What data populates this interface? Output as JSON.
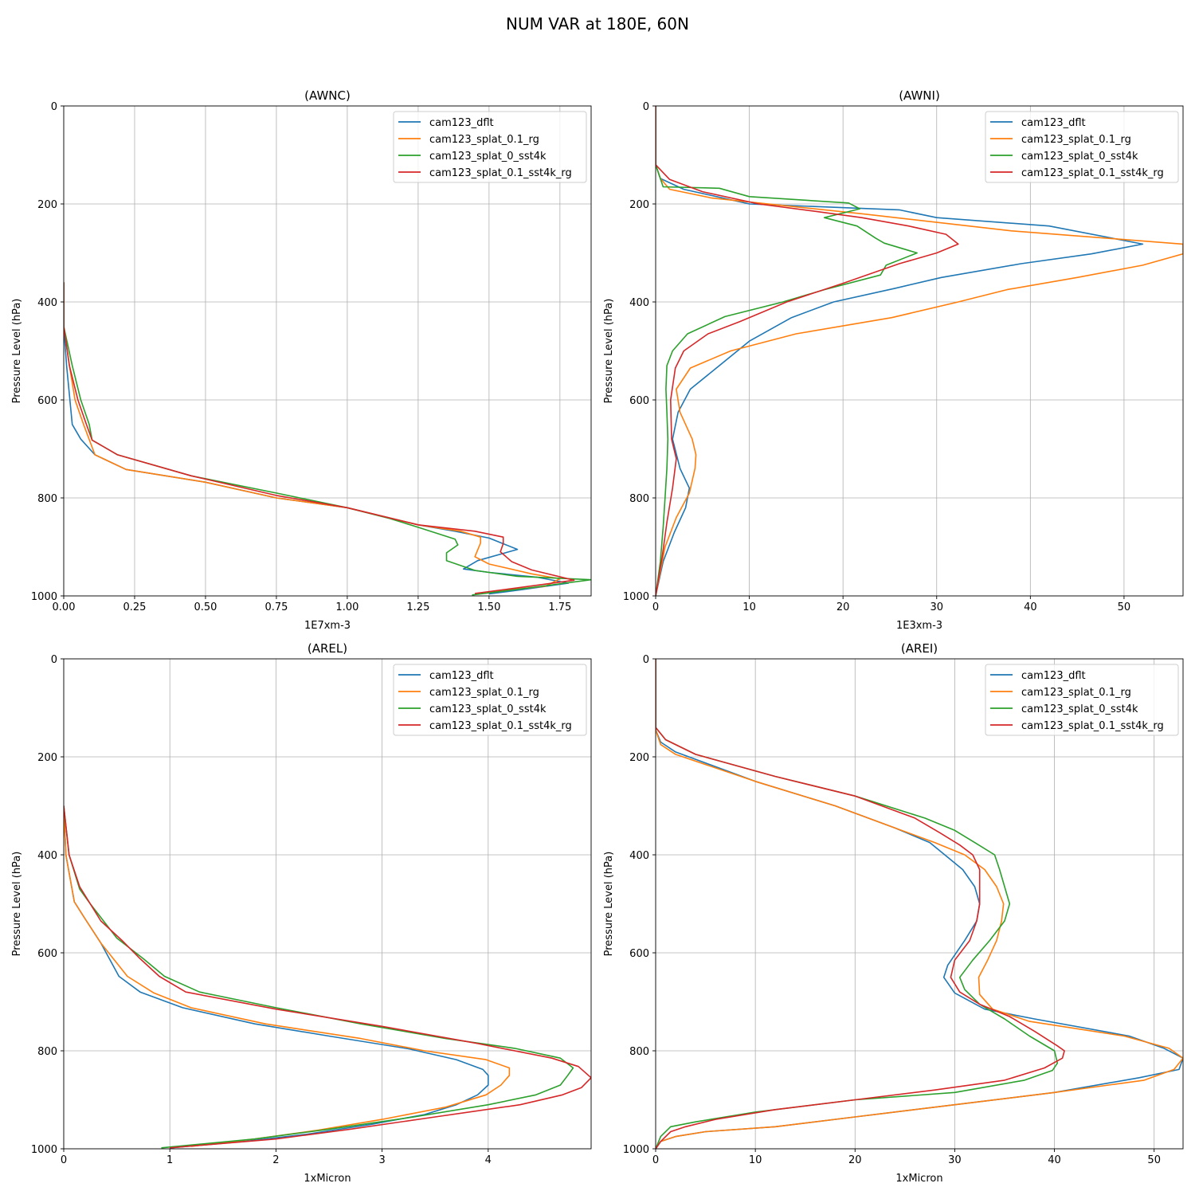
{
  "figure_title": "NUM VAR at 180E, 60N",
  "colors": {
    "cam123_dflt": "#1f77b4",
    "cam123_splat_0.1_rg": "#ff7f0e",
    "cam123_splat_0_sst4k": "#2ca02c",
    "cam123_splat_0.1_sst4k_rg": "#d62728"
  },
  "chart_data": [
    {
      "type": "line",
      "title": "(AWNC)",
      "xlabel": "1E7xm-3",
      "ylabel": "Pressure Level (hPa)",
      "xlim": [
        0,
        1.86
      ],
      "ylim": [
        1000,
        0
      ],
      "xticks": [
        0,
        0.25,
        0.5,
        0.75,
        1.0,
        1.25,
        1.5,
        1.75
      ],
      "xtick_labels": [
        "0.00",
        "0.25",
        "0.50",
        "0.75",
        "1.00",
        "1.25",
        "1.50",
        "1.75"
      ],
      "yticks": [
        0,
        200,
        400,
        600,
        800,
        1000
      ],
      "grid": true,
      "legend": "upper right",
      "series": [
        {
          "name": "cam123_dflt",
          "x": [
            0,
            0,
            0.01,
            0.03,
            0.06,
            0.11,
            0.22,
            0.5,
            0.75,
            1.0,
            1.25,
            1.38,
            1.5,
            1.6,
            1.46,
            1.41,
            1.5,
            1.67,
            1.78,
            1.62,
            1.5
          ],
          "y": [
            360,
            450,
            530,
            650,
            680,
            712,
            742,
            768,
            800,
            820,
            855,
            868,
            882,
            905,
            928,
            945,
            952,
            962,
            974,
            987,
            996
          ]
        },
        {
          "name": "cam123_splat_0.1_rg",
          "x": [
            0,
            0,
            0.02,
            0.04,
            0.07,
            0.11,
            0.22,
            0.5,
            0.75,
            1.0,
            1.25,
            1.4,
            1.47,
            1.47,
            1.45,
            1.5,
            1.65,
            1.75,
            1.7,
            1.5
          ],
          "y": [
            360,
            450,
            530,
            600,
            650,
            712,
            742,
            768,
            800,
            820,
            855,
            868,
            880,
            892,
            920,
            935,
            955,
            965,
            980,
            992
          ]
        },
        {
          "name": "cam123_splat_0_sst4k",
          "x": [
            0,
            0,
            0.03,
            0.06,
            0.09,
            0.1,
            0.19,
            0.45,
            0.75,
            1.0,
            1.15,
            1.25,
            1.38,
            1.39,
            1.35,
            1.35,
            1.45,
            1.6,
            1.86,
            1.65,
            1.44
          ],
          "y": [
            360,
            450,
            530,
            600,
            650,
            682,
            712,
            755,
            790,
            820,
            842,
            860,
            884,
            896,
            912,
            928,
            948,
            960,
            967,
            983,
            998
          ]
        },
        {
          "name": "cam123_splat_0.1_sst4k_rg",
          "x": [
            0,
            0,
            0.02,
            0.05,
            0.08,
            0.1,
            0.19,
            0.45,
            0.75,
            1.0,
            1.25,
            1.45,
            1.55,
            1.55,
            1.54,
            1.58,
            1.65,
            1.8,
            1.62,
            1.45
          ],
          "y": [
            360,
            450,
            530,
            600,
            650,
            682,
            712,
            755,
            795,
            820,
            855,
            868,
            880,
            893,
            910,
            930,
            947,
            968,
            982,
            995
          ]
        }
      ]
    },
    {
      "type": "line",
      "title": "(AWNI)",
      "xlabel": "1E3xm-3",
      "ylabel": "Pressure Level (hPa)",
      "xlim": [
        0,
        56.3
      ],
      "ylim": [
        1000,
        0
      ],
      "xticks": [
        0,
        10,
        20,
        30,
        40,
        50
      ],
      "xtick_labels": [
        "0",
        "10",
        "20",
        "30",
        "40",
        "50"
      ],
      "yticks": [
        0,
        200,
        400,
        600,
        800,
        1000
      ],
      "grid": true,
      "legend": "upper right",
      "series": [
        {
          "name": "cam123_dflt",
          "x": [
            0,
            0,
            0.5,
            3,
            10,
            26,
            30,
            42,
            52,
            46.5,
            39,
            30.5,
            25.6,
            19,
            14.5,
            10,
            6.8,
            3.7,
            2.4,
            1.8,
            2.6,
            3.6,
            3.2,
            2,
            0.8,
            0
          ],
          "y": [
            0,
            120,
            148,
            170,
            200,
            212,
            228,
            245,
            282,
            302,
            322,
            350,
            372,
            400,
            432,
            480,
            530,
            578,
            625,
            680,
            740,
            780,
            820,
            870,
            930,
            1000
          ]
        },
        {
          "name": "cam123_splat_0.1_rg",
          "x": [
            0,
            0,
            0.5,
            1.5,
            6,
            22,
            38,
            56.3,
            56.3,
            52,
            45,
            37.5,
            32.3,
            25.2,
            15,
            8,
            3.7,
            2.2,
            2.6,
            3.9,
            4.3,
            4.2,
            3.6,
            2.2,
            1,
            0
          ],
          "y": [
            0,
            120,
            148,
            170,
            188,
            220,
            255,
            282,
            302,
            325,
            350,
            375,
            400,
            432,
            465,
            500,
            535,
            578,
            625,
            680,
            712,
            740,
            790,
            840,
            900,
            1000
          ]
        },
        {
          "name": "cam123_splat_0_sst4k",
          "x": [
            0,
            0,
            0.8,
            6.8,
            10,
            20.6,
            21.8,
            18,
            21.5,
            23.5,
            24.4,
            27.9,
            24.6,
            24,
            18,
            13.6,
            7.4,
            3.4,
            1.8,
            1.2,
            1.1,
            1.2,
            1.3,
            1.2,
            1,
            0.8,
            0.5,
            0
          ],
          "y": [
            0,
            120,
            165,
            168,
            185,
            198,
            210,
            228,
            245,
            270,
            280,
            300,
            325,
            345,
            375,
            400,
            430,
            465,
            500,
            530,
            578,
            625,
            680,
            740,
            800,
            860,
            930,
            1000
          ]
        },
        {
          "name": "cam123_splat_0.1_sst4k_rg",
          "x": [
            0,
            0,
            1.5,
            5,
            11,
            17,
            22,
            27,
            31,
            32.3,
            30,
            26,
            20,
            14,
            9,
            5.6,
            3,
            2.1,
            1.6,
            1.7,
            2.2,
            1.8,
            1.2,
            0.7,
            0
          ],
          "y": [
            0,
            120,
            150,
            175,
            200,
            215,
            228,
            245,
            262,
            282,
            300,
            322,
            362,
            400,
            440,
            465,
            500,
            535,
            600,
            680,
            720,
            780,
            850,
            920,
            1000
          ]
        }
      ]
    },
    {
      "type": "line",
      "title": "(AREL)",
      "xlabel": "1xMicron",
      "ylabel": "Pressure Level (hPa)",
      "xlim": [
        0,
        4.97
      ],
      "ylim": [
        1000,
        0
      ],
      "xticks": [
        0,
        1,
        2,
        3,
        4
      ],
      "xtick_labels": [
        "0",
        "1",
        "2",
        "3",
        "4"
      ],
      "yticks": [
        0,
        200,
        400,
        600,
        800,
        1000
      ],
      "grid": true,
      "legend": "upper right",
      "series": [
        {
          "name": "cam123_dflt",
          "x": [
            0,
            0.02,
            0.1,
            0.2,
            0.35,
            0.52,
            0.72,
            1.12,
            1.8,
            2.5,
            3.25,
            3.7,
            3.95,
            4.0,
            4.0,
            3.9,
            3.7,
            3.4,
            2.9,
            2.3,
            1.7,
            1.0
          ],
          "y": [
            300,
            400,
            496,
            530,
            580,
            648,
            680,
            712,
            745,
            770,
            796,
            818,
            838,
            850,
            870,
            890,
            910,
            930,
            950,
            970,
            985,
            998
          ]
        },
        {
          "name": "cam123_splat_0.1_rg",
          "x": [
            0,
            0.02,
            0.1,
            0.2,
            0.35,
            0.6,
            0.85,
            1.2,
            1.9,
            2.8,
            3.4,
            3.98,
            4.2,
            4.2,
            4.12,
            3.98,
            3.6,
            3.0,
            2.4,
            1.8,
            1.2
          ],
          "y": [
            300,
            400,
            496,
            530,
            580,
            648,
            682,
            712,
            745,
            775,
            800,
            818,
            835,
            850,
            870,
            890,
            915,
            940,
            962,
            980,
            995
          ]
        },
        {
          "name": "cam123_splat_0_sst4k",
          "x": [
            0,
            0.05,
            0.15,
            0.25,
            0.5,
            0.75,
            0.95,
            1.28,
            2.0,
            2.8,
            3.6,
            4.25,
            4.68,
            4.8,
            4.75,
            4.68,
            4.45,
            4.0,
            3.3,
            2.5,
            1.8,
            0.92
          ],
          "y": [
            300,
            400,
            470,
            500,
            570,
            612,
            648,
            680,
            712,
            745,
            775,
            795,
            815,
            835,
            850,
            870,
            890,
            910,
            935,
            960,
            980,
            998
          ]
        },
        {
          "name": "cam123_splat_0.1_sst4k_rg",
          "x": [
            0,
            0.05,
            0.15,
            0.35,
            0.55,
            0.72,
            0.9,
            1.15,
            2.0,
            3.0,
            3.9,
            4.6,
            4.85,
            4.97,
            4.88,
            4.7,
            4.3,
            3.5,
            2.7,
            2.0,
            1.0
          ],
          "y": [
            300,
            400,
            465,
            535,
            575,
            612,
            648,
            680,
            715,
            750,
            785,
            815,
            832,
            855,
            875,
            890,
            910,
            935,
            960,
            980,
            998
          ]
        }
      ]
    },
    {
      "type": "line",
      "title": "(AREI)",
      "xlabel": "1xMicron",
      "ylabel": "Pressure Level (hPa)",
      "xlim": [
        0,
        52.9
      ],
      "ylim": [
        1000,
        0
      ],
      "xticks": [
        0,
        10,
        20,
        30,
        40,
        50
      ],
      "xtick_labels": [
        "0",
        "10",
        "20",
        "30",
        "40",
        "50"
      ],
      "yticks": [
        0,
        200,
        400,
        600,
        800,
        1000
      ],
      "grid": true,
      "legend": "upper right",
      "series": [
        {
          "name": "cam123_dflt",
          "x": [
            0,
            0,
            0.5,
            2,
            10,
            18,
            24,
            27.5,
            29,
            30.8,
            32,
            32.5,
            32.2,
            31,
            29.3,
            28.9,
            30,
            33,
            38,
            47.5,
            51,
            52.9,
            52.5,
            48.5,
            40,
            30,
            20,
            12,
            5,
            2,
            0.5,
            0
          ],
          "y": [
            0,
            145,
            170,
            190,
            250,
            300,
            345,
            375,
            400,
            430,
            465,
            500,
            535,
            575,
            625,
            650,
            682,
            715,
            735,
            770,
            795,
            815,
            838,
            855,
            885,
            910,
            935,
            955,
            965,
            975,
            985,
            1000
          ]
        },
        {
          "name": "cam123_splat_0.1_rg",
          "x": [
            0,
            0,
            0.5,
            2,
            10,
            18,
            24,
            28,
            31,
            33,
            34.2,
            34.9,
            34.7,
            34.2,
            33.3,
            32.4,
            32.5,
            33.8,
            37.5,
            47,
            51.5,
            52.9,
            52,
            49,
            40,
            30,
            20,
            12,
            5,
            2,
            0.5,
            0
          ],
          "y": [
            0,
            145,
            175,
            195,
            250,
            300,
            345,
            375,
            400,
            430,
            465,
            500,
            535,
            575,
            615,
            650,
            685,
            715,
            740,
            770,
            795,
            815,
            838,
            860,
            885,
            910,
            935,
            955,
            965,
            975,
            985,
            1000
          ]
        },
        {
          "name": "cam123_splat_0_sst4k",
          "x": [
            0,
            0,
            1,
            4,
            12,
            20,
            27,
            30,
            32,
            34,
            34.5,
            35.5,
            35,
            33.5,
            31.8,
            30.5,
            31,
            32.5,
            35,
            37.5,
            40,
            40.3,
            39.8,
            37,
            30,
            20,
            10,
            4,
            1.5,
            0.5,
            0
          ],
          "y": [
            0,
            140,
            165,
            195,
            240,
            280,
            325,
            350,
            375,
            400,
            430,
            500,
            535,
            575,
            615,
            650,
            675,
            705,
            735,
            770,
            800,
            825,
            840,
            860,
            885,
            900,
            925,
            945,
            955,
            975,
            1000
          ]
        },
        {
          "name": "cam123_splat_0.1_sst4k_rg",
          "x": [
            0,
            0,
            1,
            4,
            12,
            20,
            26,
            28.5,
            30.5,
            31.8,
            32.5,
            32.5,
            32.2,
            31.5,
            30,
            29.6,
            30.5,
            32.5,
            35.5,
            38,
            40.3,
            41,
            40.8,
            39,
            35,
            28,
            20,
            12,
            6,
            3,
            1.5,
            0.5,
            0
          ],
          "y": [
            0,
            140,
            165,
            195,
            240,
            280,
            325,
            355,
            380,
            400,
            430,
            500,
            535,
            575,
            615,
            650,
            680,
            705,
            730,
            760,
            790,
            800,
            815,
            835,
            860,
            880,
            900,
            920,
            940,
            955,
            965,
            985,
            1000
          ]
        }
      ]
    }
  ]
}
